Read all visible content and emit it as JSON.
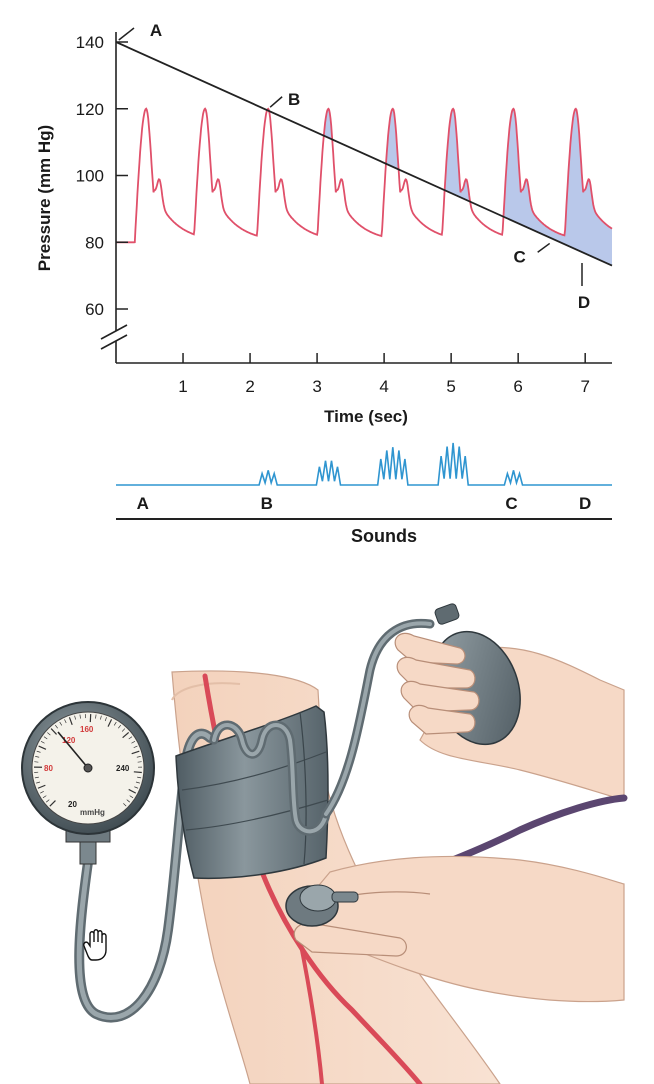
{
  "chart_data": {
    "type": "line",
    "title": "",
    "xlabel": "Time (sec)",
    "ylabel": "Pressure (mm Hg)",
    "xlim": [
      0,
      7.4
    ],
    "ylim": [
      50,
      145
    ],
    "x_ticks": [
      1,
      2,
      3,
      4,
      5,
      6,
      7
    ],
    "y_ticks": [
      60,
      80,
      100,
      120,
      140
    ],
    "x_tick_labels": [
      "1",
      "2",
      "3",
      "4",
      "5",
      "6",
      "7"
    ],
    "y_tick_labels": [
      "60",
      "80",
      "100",
      "120",
      "140"
    ],
    "axis_break": true,
    "series": [
      {
        "name": "",
        "kind": "arterial-pulse",
        "color": "#e0506a",
        "systolic": 120,
        "diastolic": 80,
        "dicrotic_notch": 102,
        "peak_times": [
          0.45,
          1.33,
          2.27,
          3.17,
          4.13,
          5.03,
          5.93,
          6.86
        ]
      },
      {
        "name": "",
        "kind": "cuff-pressure",
        "color": "#222222",
        "x": [
          0,
          7.4
        ],
        "y": [
          140,
          73
        ]
      }
    ],
    "fill_color": "#b9c8ea",
    "annotations": [
      {
        "label": "A",
        "x": 0,
        "y": 140
      },
      {
        "label": "B",
        "x": 2.27,
        "y": 120
      },
      {
        "label": "C",
        "x": 6.5,
        "y": 80
      },
      {
        "label": "D",
        "x": 7.0,
        "y": 75
      }
    ],
    "grid": false,
    "legend": "none"
  },
  "sounds": {
    "title": "Sounds",
    "color": "#2f95d0",
    "markers": [
      "A",
      "B",
      "C",
      "D"
    ],
    "marker_times": [
      0.4,
      2.25,
      5.9,
      7.0
    ],
    "bursts": [
      {
        "t": 2.27,
        "amp": 0.35,
        "peaks": 3
      },
      {
        "t": 3.17,
        "amp": 0.6,
        "peaks": 4
      },
      {
        "t": 4.13,
        "amp": 0.9,
        "peaks": 5
      },
      {
        "t": 5.03,
        "amp": 1.0,
        "peaks": 5
      },
      {
        "t": 5.93,
        "amp": 0.35,
        "peaks": 3
      }
    ]
  },
  "gauge": {
    "labels": [
      "120",
      "160",
      "80",
      "240",
      "20",
      "mmHg"
    ],
    "accent": "#d23a3a"
  },
  "illustration": {
    "cuff_color": "#6b7a82",
    "skin_color": "#f6d9c6",
    "artery_color": "#d94a58",
    "tube_color": "#7b8a90",
    "stethoscope_tube_color": "#5b4670"
  }
}
